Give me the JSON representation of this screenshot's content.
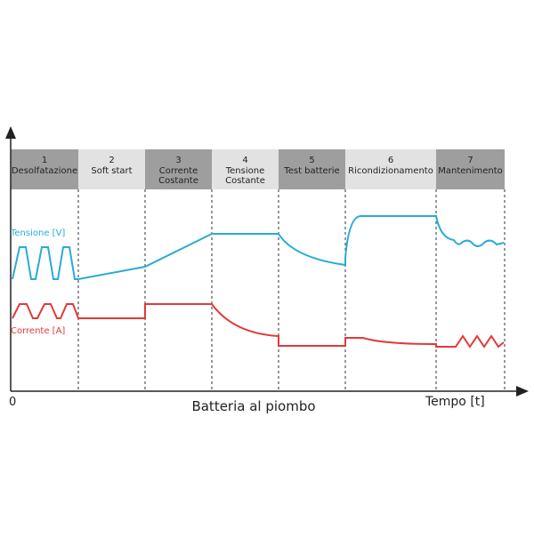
{
  "phases": [
    {
      "number": "1",
      "label_lines": [
        "Desolfatazione"
      ]
    },
    {
      "number": "2",
      "label_lines": [
        "Soft start"
      ]
    },
    {
      "number": "3",
      "label_lines": [
        "Corrente",
        "Costante"
      ]
    },
    {
      "number": "4",
      "label_lines": [
        "Tensione",
        "Costante"
      ]
    },
    {
      "number": "5",
      "label_lines": [
        "Test batterie"
      ]
    },
    {
      "number": "6",
      "label_lines": [
        "Ricondizionamento"
      ]
    },
    {
      "number": "7",
      "label_lines": [
        "Mantenimento"
      ]
    }
  ],
  "voltage_label": "Tensione [V]",
  "current_label": "Corrente [A]",
  "origin_label": "0",
  "x_axis_label": "Tempo [t]",
  "caption": "Batteria al piombo"
}
